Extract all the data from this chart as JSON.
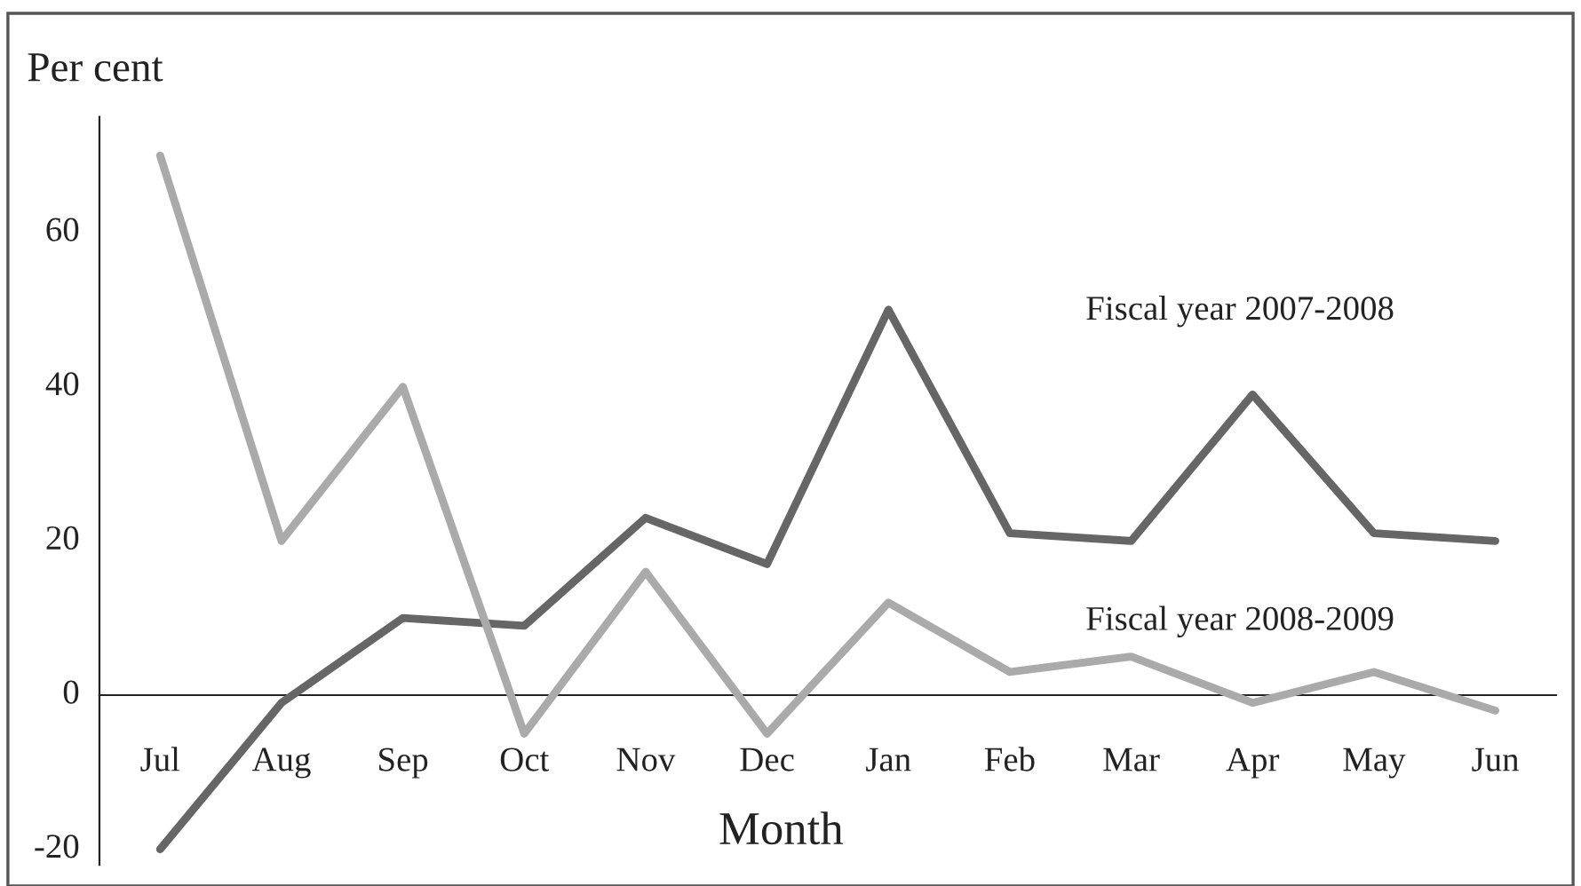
{
  "chart_data": {
    "type": "line",
    "ylabel": "Per cent",
    "xlabel": "Month",
    "categories": [
      "Jul",
      "Aug",
      "Sep",
      "Oct",
      "Nov",
      "Dec",
      "Jan",
      "Feb",
      "Mar",
      "Apr",
      "May",
      "Jun"
    ],
    "series": [
      {
        "name": "Fiscal year 2007-2008",
        "color": "#666666",
        "values": [
          -20,
          -1,
          10,
          9,
          23,
          17,
          50,
          21,
          20,
          39,
          21,
          20
        ]
      },
      {
        "name": "Fiscal year 2008-2009",
        "color": "#aaaaaa",
        "values": [
          70,
          20,
          40,
          -5,
          16,
          -5,
          12,
          3,
          5,
          -1,
          3,
          -2
        ]
      }
    ],
    "ylim": [
      -22,
      75
    ],
    "yticks": [
      -20,
      0,
      20,
      40,
      60
    ],
    "grid": false,
    "legend": false,
    "marker": "none",
    "line_style": "solid"
  }
}
